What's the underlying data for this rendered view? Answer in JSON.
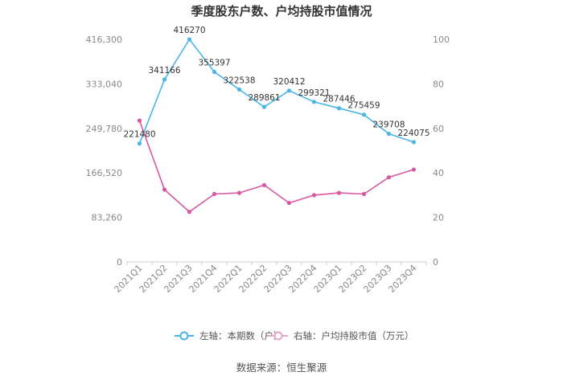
{
  "chart_data": {
    "type": "line",
    "title": "季度股东户数、户均持股市值情况",
    "categories": [
      "2021Q1",
      "2021Q2",
      "2021Q3",
      "2021Q4",
      "2022Q1",
      "2022Q2",
      "2022Q3",
      "2022Q4",
      "2023Q1",
      "2023Q2",
      "2023Q3",
      "2023Q4"
    ],
    "left_axis": {
      "ticks": [
        "0",
        "83,260",
        "166,520",
        "249,780",
        "333,040",
        "416,300"
      ],
      "ylim": [
        0,
        416300
      ]
    },
    "right_axis": {
      "ticks": [
        "0",
        "20",
        "40",
        "60",
        "80",
        "100"
      ],
      "ylim": [
        0,
        100
      ]
    },
    "series": [
      {
        "name": "左轴：本期数（户）",
        "axis": "left",
        "color": "#4ab6e8",
        "values": [
          221480,
          341166,
          416270,
          355397,
          322538,
          289861,
          320412,
          299321,
          287446,
          275459,
          239708,
          224075
        ],
        "labels": [
          "221480",
          "341166",
          "416270",
          "355397",
          "322538",
          "289861",
          "320412",
          "299321",
          "287446",
          "275459",
          "239708",
          "224075"
        ]
      },
      {
        "name": "右轴：户均持股市值（万元）",
        "axis": "right",
        "color": "#d957a3",
        "values": [
          63.5,
          32.5,
          22.5,
          30.5,
          31.0,
          34.5,
          26.5,
          30.0,
          31.0,
          30.5,
          38.0,
          41.5
        ]
      }
    ],
    "legend_position": "bottom",
    "grid": false
  },
  "source": "数据来源：恒生聚源"
}
